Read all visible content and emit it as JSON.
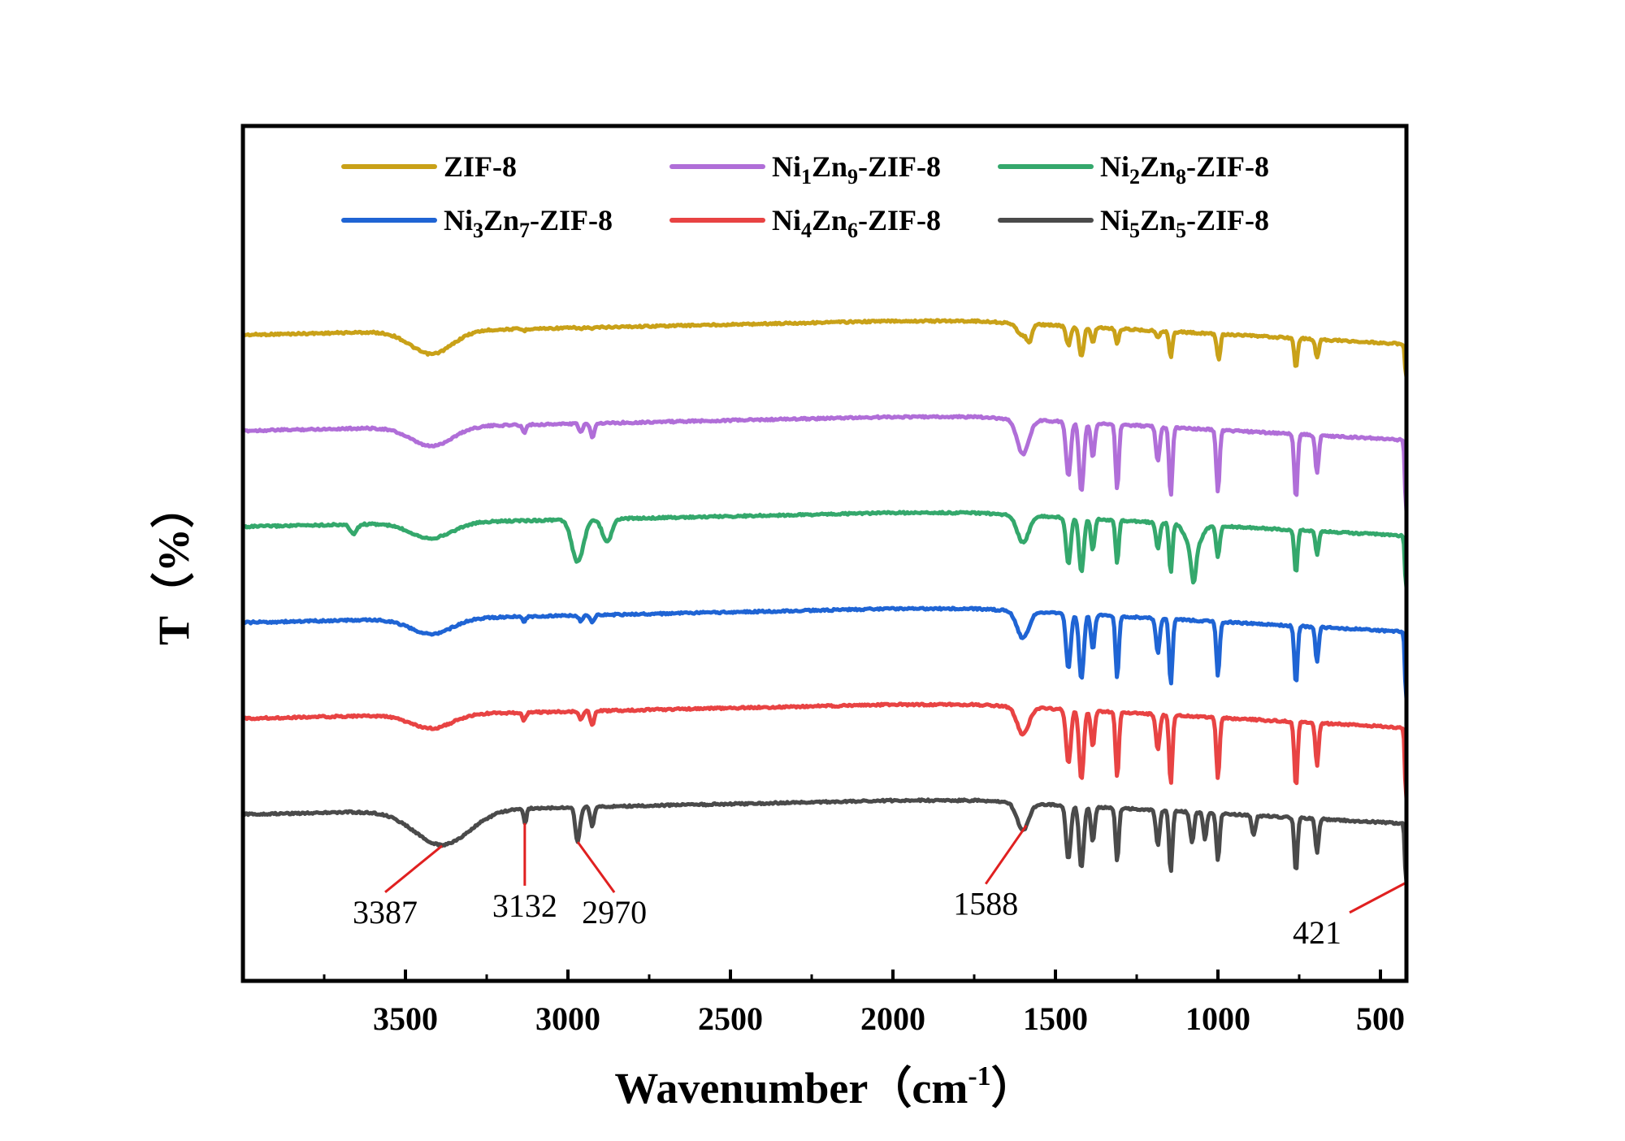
{
  "chart_data": {
    "type": "line",
    "title": "",
    "xlabel": "Wavenumber（cm⁻¹）",
    "xlabel_parts": {
      "main": "Wavenumber（cm",
      "sup": "-1",
      "close": "）"
    },
    "ylabel": "T（%）",
    "xlim": [
      4000,
      420
    ],
    "x_reversed": true,
    "x_ticks": [
      3500,
      3000,
      2500,
      2000,
      1500,
      1000,
      500
    ],
    "x_minor_ticks": [
      3750,
      3250,
      2750,
      2250,
      1750,
      1250,
      750
    ],
    "y_ticks": [],
    "grid": false,
    "legend_position": "top",
    "series": [
      {
        "name": "ZIF-8",
        "label": {
          "base1": "ZIF-8"
        },
        "color": "#C9A118",
        "offset": 0,
        "depth": 0.55,
        "broad": [
          [
            3420,
            0.3,
            90
          ],
          [
            1600,
            0.15,
            25
          ]
        ],
        "sharp": [
          [
            3135,
            0.04,
            8
          ],
          [
            2960,
            0.03,
            8
          ],
          [
            2925,
            0.04,
            8
          ],
          [
            1580,
            0.3,
            10
          ],
          [
            1460,
            0.45,
            10
          ],
          [
            1420,
            0.7,
            10
          ],
          [
            1385,
            0.35,
            8
          ],
          [
            1310,
            0.35,
            7
          ],
          [
            1185,
            0.15,
            8
          ],
          [
            1145,
            0.6,
            7
          ],
          [
            1000,
            0.4,
            7
          ],
          [
            995,
            0.3,
            5
          ],
          [
            760,
            0.7,
            7
          ],
          [
            695,
            0.45,
            7
          ],
          [
            421,
            0.8,
            5
          ]
        ]
      },
      {
        "name": "Ni1Zn9-ZIF-8",
        "label": {
          "base1": "Ni",
          "sub1": "1",
          "base2": "Zn",
          "sub2": "9",
          "tail": "-ZIF-8"
        },
        "color": "#B06ED8",
        "offset": 1,
        "depth": 1.0,
        "broad": [
          [
            3420,
            0.25,
            90
          ],
          [
            1600,
            0.45,
            25
          ]
        ],
        "sharp": [
          [
            3135,
            0.1,
            8
          ],
          [
            2960,
            0.12,
            8
          ],
          [
            2925,
            0.18,
            8
          ],
          [
            1460,
            0.7,
            10
          ],
          [
            1420,
            0.9,
            10
          ],
          [
            1385,
            0.45,
            8
          ],
          [
            1310,
            0.85,
            7
          ],
          [
            1185,
            0.45,
            8
          ],
          [
            1145,
            0.9,
            7
          ],
          [
            1000,
            0.8,
            7
          ],
          [
            760,
            0.85,
            7
          ],
          [
            695,
            0.5,
            7
          ],
          [
            421,
            0.95,
            5
          ]
        ]
      },
      {
        "name": "Ni2Zn8-ZIF-8",
        "label": {
          "base1": "Ni",
          "sub1": "2",
          "base2": "Zn",
          "sub2": "8",
          "tail": "-ZIF-8"
        },
        "color": "#34A86C",
        "offset": 2,
        "depth": 1.0,
        "broad": [
          [
            3420,
            0.2,
            90
          ],
          [
            1600,
            0.35,
            25
          ],
          [
            1075,
            0.35,
            30
          ]
        ],
        "sharp": [
          [
            3660,
            0.12,
            15
          ],
          [
            2970,
            0.55,
            25
          ],
          [
            2880,
            0.3,
            20
          ],
          [
            1460,
            0.6,
            10
          ],
          [
            1420,
            0.7,
            10
          ],
          [
            1385,
            0.4,
            8
          ],
          [
            1310,
            0.55,
            7
          ],
          [
            1185,
            0.35,
            8
          ],
          [
            1145,
            0.65,
            7
          ],
          [
            1075,
            0.4,
            10
          ],
          [
            1000,
            0.4,
            8
          ],
          [
            760,
            0.55,
            7
          ],
          [
            695,
            0.3,
            7
          ],
          [
            421,
            0.7,
            5
          ]
        ]
      },
      {
        "name": "Ni3Zn7-ZIF-8",
        "label": {
          "base1": "Ni",
          "sub1": "3",
          "base2": "Zn",
          "sub2": "7",
          "tail": "-ZIF-8"
        },
        "color": "#1F64D4",
        "offset": 3,
        "depth": 1.0,
        "broad": [
          [
            3420,
            0.2,
            90
          ],
          [
            1600,
            0.35,
            25
          ]
        ],
        "sharp": [
          [
            3135,
            0.06,
            8
          ],
          [
            2960,
            0.08,
            8
          ],
          [
            2925,
            0.1,
            8
          ],
          [
            1460,
            0.7,
            10
          ],
          [
            1420,
            0.85,
            10
          ],
          [
            1385,
            0.45,
            8
          ],
          [
            1310,
            0.8,
            7
          ],
          [
            1185,
            0.45,
            8
          ],
          [
            1145,
            0.85,
            7
          ],
          [
            1000,
            0.7,
            7
          ],
          [
            760,
            0.75,
            7
          ],
          [
            695,
            0.45,
            7
          ],
          [
            421,
            0.9,
            5
          ]
        ]
      },
      {
        "name": "Ni4Zn6-ZIF-8",
        "label": {
          "base1": "Ni",
          "sub1": "4",
          "base2": "Zn",
          "sub2": "6",
          "tail": "-ZIF-8"
        },
        "color": "#E84343",
        "offset": 4,
        "depth": 1.0,
        "broad": [
          [
            3420,
            0.18,
            90
          ],
          [
            1600,
            0.35,
            25
          ]
        ],
        "sharp": [
          [
            3135,
            0.1,
            8
          ],
          [
            2960,
            0.1,
            8
          ],
          [
            2925,
            0.18,
            8
          ],
          [
            1460,
            0.7,
            10
          ],
          [
            1420,
            0.9,
            10
          ],
          [
            1385,
            0.45,
            8
          ],
          [
            1310,
            0.85,
            7
          ],
          [
            1185,
            0.45,
            8
          ],
          [
            1145,
            0.9,
            7
          ],
          [
            1000,
            0.8,
            7
          ],
          [
            760,
            0.85,
            7
          ],
          [
            695,
            0.55,
            7
          ],
          [
            421,
            0.95,
            5
          ]
        ]
      },
      {
        "name": "Ni5Zn5-ZIF-8",
        "label": {
          "base1": "Ni",
          "sub1": "5",
          "base2": "Zn",
          "sub2": "5",
          "tail": "-ZIF-8"
        },
        "color": "#4A4A4A",
        "offset": 5,
        "depth": 1.0,
        "broad": [
          [
            3387,
            0.45,
            120
          ],
          [
            1600,
            0.35,
            25
          ]
        ],
        "sharp": [
          [
            3132,
            0.2,
            6
          ],
          [
            2970,
            0.45,
            10
          ],
          [
            2925,
            0.25,
            8
          ],
          [
            1460,
            0.7,
            10
          ],
          [
            1420,
            0.8,
            10
          ],
          [
            1385,
            0.45,
            8
          ],
          [
            1310,
            0.7,
            7
          ],
          [
            1185,
            0.45,
            8
          ],
          [
            1145,
            0.8,
            7
          ],
          [
            1080,
            0.4,
            8
          ],
          [
            1040,
            0.35,
            7
          ],
          [
            1000,
            0.6,
            7
          ],
          [
            890,
            0.25,
            8
          ],
          [
            760,
            0.7,
            7
          ],
          [
            695,
            0.45,
            7
          ],
          [
            421,
            0.8,
            5
          ]
        ]
      }
    ],
    "annotations": [
      {
        "label": "3387",
        "x": 3387,
        "series": "Ni5Zn5-ZIF-8"
      },
      {
        "label": "3132",
        "x": 3132,
        "series": "Ni5Zn5-ZIF-8"
      },
      {
        "label": "2970",
        "x": 2970,
        "series": "Ni5Zn5-ZIF-8"
      },
      {
        "label": "1588",
        "x": 1588,
        "series": "Ni5Zn5-ZIF-8"
      },
      {
        "label": "421",
        "x": 421,
        "series": "Ni5Zn5-ZIF-8"
      }
    ],
    "annotation_color": "#E02020"
  }
}
